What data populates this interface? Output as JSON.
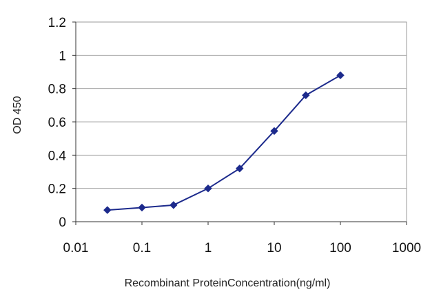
{
  "chart_data": {
    "type": "line",
    "title": "",
    "xlabel": "Recombinant ProteinConcentration(ng/ml)",
    "ylabel": "OD 450",
    "x_scale": "log",
    "xlim": [
      0.01,
      1000
    ],
    "ylim": [
      0,
      1.2
    ],
    "x_ticks": [
      0.01,
      0.1,
      1,
      10,
      100,
      1000
    ],
    "x_tick_labels": [
      "0.01",
      "0.1",
      "1",
      "10",
      "100",
      "1000"
    ],
    "y_ticks": [
      0,
      0.2,
      0.4,
      0.6,
      0.8,
      1,
      1.2
    ],
    "y_tick_labels": [
      "0",
      "0.2",
      "0.4",
      "0.6",
      "0.8",
      "1",
      "1.2"
    ],
    "grid": "horizontal",
    "legend": "none",
    "series": [
      {
        "color": "#1c2a8c",
        "marker": "diamond",
        "x": [
          0.03,
          0.1,
          0.3,
          1,
          3,
          10,
          30,
          100
        ],
        "y": [
          0.07,
          0.085,
          0.1,
          0.2,
          0.32,
          0.545,
          0.76,
          0.88
        ]
      }
    ]
  }
}
